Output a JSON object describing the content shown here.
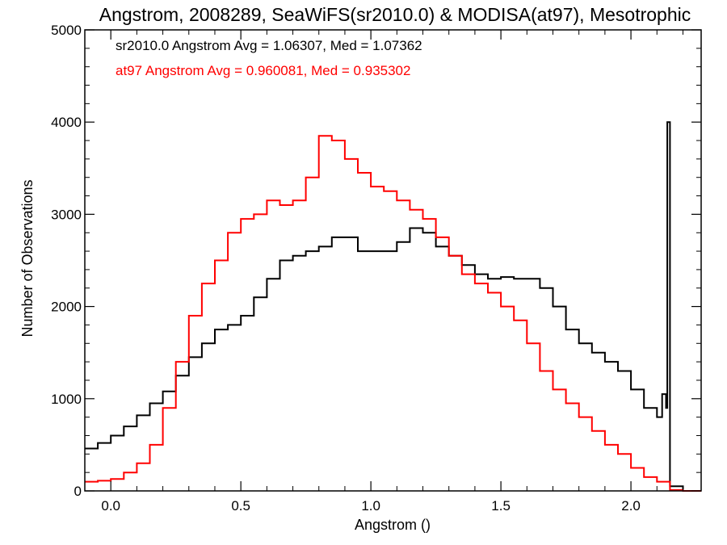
{
  "chart_data": {
    "type": "line",
    "title": "Angstrom, 2008289, SeaWiFS(sr2010.0) & MODISA(at97), Mesotrophic",
    "xlabel": "Angstrom ()",
    "ylabel": "Number of Observations",
    "xlim": [
      -0.1,
      2.27
    ],
    "ylim": [
      0,
      5000
    ],
    "xticks": [
      0.0,
      0.5,
      1.0,
      1.5,
      2.0
    ],
    "xtick_labels": [
      "0.0",
      "0.5",
      "1.0",
      "1.5",
      "2.0"
    ],
    "yticks": [
      0,
      1000,
      2000,
      3000,
      4000,
      5000
    ],
    "ytick_labels": [
      "0",
      "1000",
      "2000",
      "3000",
      "4000",
      "5000"
    ],
    "grid": false,
    "annotations": [
      {
        "text": "sr2010.0 Angstrom Avg = 1.06307, Med = 1.07362",
        "color": "#000000"
      },
      {
        "text": "at97 Angstrom Avg = 0.960081, Med = 0.935302",
        "color": "#ff0000"
      }
    ],
    "series": [
      {
        "color": "#000000",
        "x": [
          -0.1,
          -0.05,
          0.0,
          0.05,
          0.1,
          0.15,
          0.2,
          0.25,
          0.3,
          0.35,
          0.4,
          0.45,
          0.5,
          0.55,
          0.6,
          0.65,
          0.7,
          0.75,
          0.8,
          0.85,
          0.9,
          0.95,
          1.0,
          1.05,
          1.1,
          1.15,
          1.2,
          1.25,
          1.3,
          1.35,
          1.4,
          1.45,
          1.5,
          1.55,
          1.6,
          1.65,
          1.7,
          1.75,
          1.8,
          1.85,
          1.9,
          1.95,
          2.0,
          2.05,
          2.1,
          2.12,
          2.135,
          2.14,
          2.15,
          2.2,
          2.27
        ],
        "y": [
          460,
          520,
          600,
          700,
          820,
          950,
          1080,
          1250,
          1450,
          1600,
          1750,
          1800,
          1900,
          2100,
          2300,
          2500,
          2550,
          2600,
          2650,
          2750,
          2750,
          2600,
          2600,
          2600,
          2700,
          2850,
          2800,
          2650,
          2550,
          2450,
          2350,
          2300,
          2320,
          2300,
          2300,
          2200,
          2000,
          1750,
          1600,
          1500,
          1400,
          1300,
          1100,
          900,
          800,
          1050,
          900,
          4000,
          50,
          0,
          0
        ]
      },
      {
        "color": "#ff0000",
        "x": [
          -0.1,
          -0.05,
          0.0,
          0.05,
          0.1,
          0.15,
          0.2,
          0.25,
          0.3,
          0.35,
          0.4,
          0.45,
          0.5,
          0.55,
          0.6,
          0.65,
          0.7,
          0.75,
          0.8,
          0.85,
          0.9,
          0.95,
          1.0,
          1.05,
          1.1,
          1.15,
          1.2,
          1.25,
          1.3,
          1.35,
          1.4,
          1.45,
          1.5,
          1.55,
          1.6,
          1.65,
          1.7,
          1.75,
          1.8,
          1.85,
          1.9,
          1.95,
          2.0,
          2.05,
          2.1,
          2.15,
          2.2,
          2.27
        ],
        "y": [
          100,
          110,
          130,
          200,
          300,
          500,
          900,
          1400,
          1900,
          2250,
          2500,
          2800,
          2950,
          3000,
          3150,
          3100,
          3150,
          3400,
          3850,
          3800,
          3600,
          3450,
          3300,
          3250,
          3150,
          3050,
          2950,
          2750,
          2550,
          2350,
          2250,
          2150,
          2000,
          1850,
          1600,
          1300,
          1100,
          950,
          800,
          650,
          500,
          400,
          250,
          150,
          100,
          10,
          0,
          0
        ]
      }
    ]
  }
}
